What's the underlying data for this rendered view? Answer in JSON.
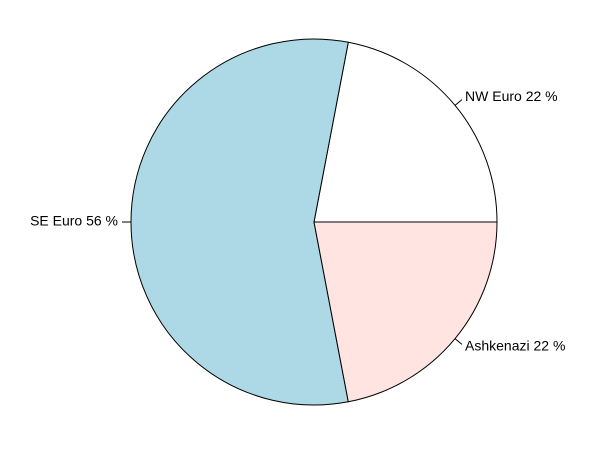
{
  "chart_data": {
    "type": "pie",
    "title": "",
    "start_angle_deg": 0,
    "direction": "counterclockwise",
    "slices": [
      {
        "label": "NW Euro 22 %",
        "category": "NW Euro",
        "value": 22,
        "color": "#ffffff"
      },
      {
        "label": "SE Euro 56 %",
        "category": "SE Euro",
        "value": 56,
        "color": "#add8e6"
      },
      {
        "label": "Ashkenazi 22 %",
        "category": "Ashkenazi",
        "value": 22,
        "color": "#ffe4e1"
      }
    ]
  }
}
